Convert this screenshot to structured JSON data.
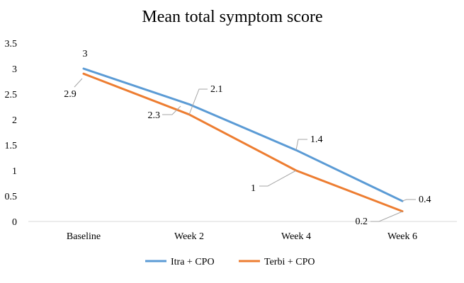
{
  "chart_data": {
    "type": "line",
    "title": "Mean total symptom score",
    "categories": [
      "Baseline",
      "Week 2",
      "Week 4",
      "Week 6"
    ],
    "ylim": [
      0,
      3.5
    ],
    "yticks": [
      "0",
      "0.5",
      "1",
      "1.5",
      "2",
      "2.5",
      "3",
      "3.5"
    ],
    "grid": false,
    "legend_position": "bottom",
    "series": [
      {
        "name": "Itra + CPO",
        "color": "#5b9bd5",
        "values": [
          3,
          2.3,
          1.4,
          0.4
        ],
        "labels": [
          "3",
          "",
          "1.4",
          "0.4"
        ]
      },
      {
        "name": "Terbi + CPO",
        "color": "#ed7d31",
        "values": [
          2.9,
          2.1,
          1,
          0.2
        ],
        "labels": [
          "2.9",
          "2.1",
          "1",
          "0.2"
        ]
      }
    ],
    "extra_labels": [
      "2.3"
    ]
  }
}
